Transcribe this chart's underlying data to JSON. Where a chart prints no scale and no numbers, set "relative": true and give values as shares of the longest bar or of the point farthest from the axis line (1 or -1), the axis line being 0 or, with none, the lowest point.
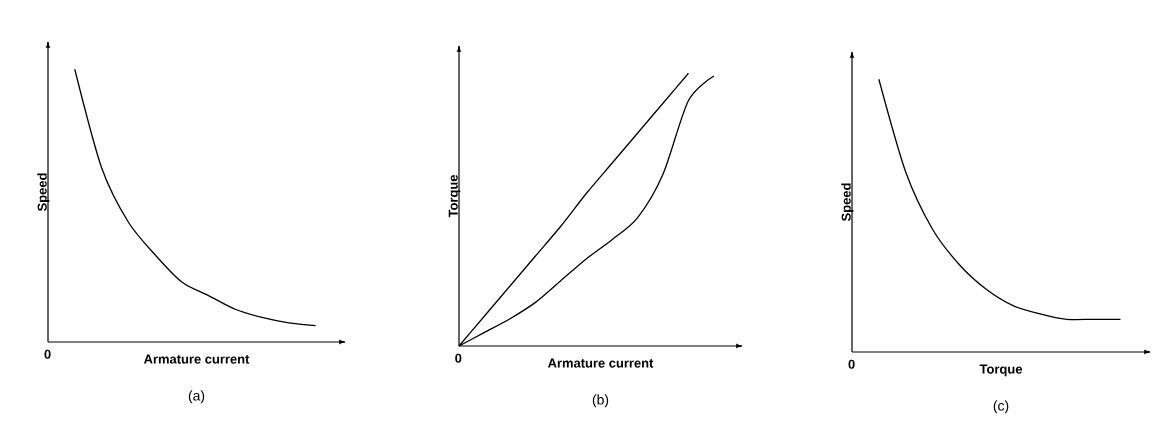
{
  "chart_data": [
    {
      "type": "line",
      "relative": true,
      "title": "(a)",
      "xlabel": "Armature current",
      "ylabel": "Speed",
      "annotations": [
        "0"
      ],
      "categories": [
        null,
        null,
        null,
        null,
        null,
        null,
        null,
        null,
        null,
        null,
        null
      ],
      "series": [
        {
          "color": "#000000",
          "values": [
            null,
            1,
            0.64,
            0.44,
            0.32,
            0.22,
            0.17,
            0.12,
            0.09,
            0.07,
            0.06
          ]
        }
      ]
    },
    {
      "type": "line",
      "relative": true,
      "title": "(b)",
      "xlabel": "Armature current",
      "ylabel": "Torque",
      "annotations": [
        "0"
      ],
      "categories": [
        null,
        null,
        null,
        null,
        null,
        null,
        null,
        null,
        null,
        null,
        null
      ],
      "series": [
        {
          "color": "#000000",
          "values": [
            0,
            0.11,
            0.22,
            0.33,
            0.44,
            0.56,
            0.67,
            0.78,
            0.89,
            1,
            null
          ]
        },
        {
          "color": "#000000",
          "values": [
            0,
            0.05,
            0.1,
            0.16,
            0.24,
            0.32,
            0.39,
            0.47,
            0.63,
            0.9,
            0.99
          ]
        }
      ]
    },
    {
      "type": "line",
      "relative": true,
      "title": "(c)",
      "xlabel": "Torque",
      "ylabel": "Speed",
      "annotations": [
        "0"
      ],
      "categories": [
        null,
        null,
        null,
        null,
        null,
        null,
        null,
        null,
        null,
        null,
        null
      ],
      "series": [
        {
          "color": "#000000",
          "values": [
            null,
            1,
            0.66,
            0.45,
            0.32,
            0.23,
            0.17,
            0.14,
            0.12,
            0.12,
            0.12
          ]
        }
      ]
    }
  ]
}
